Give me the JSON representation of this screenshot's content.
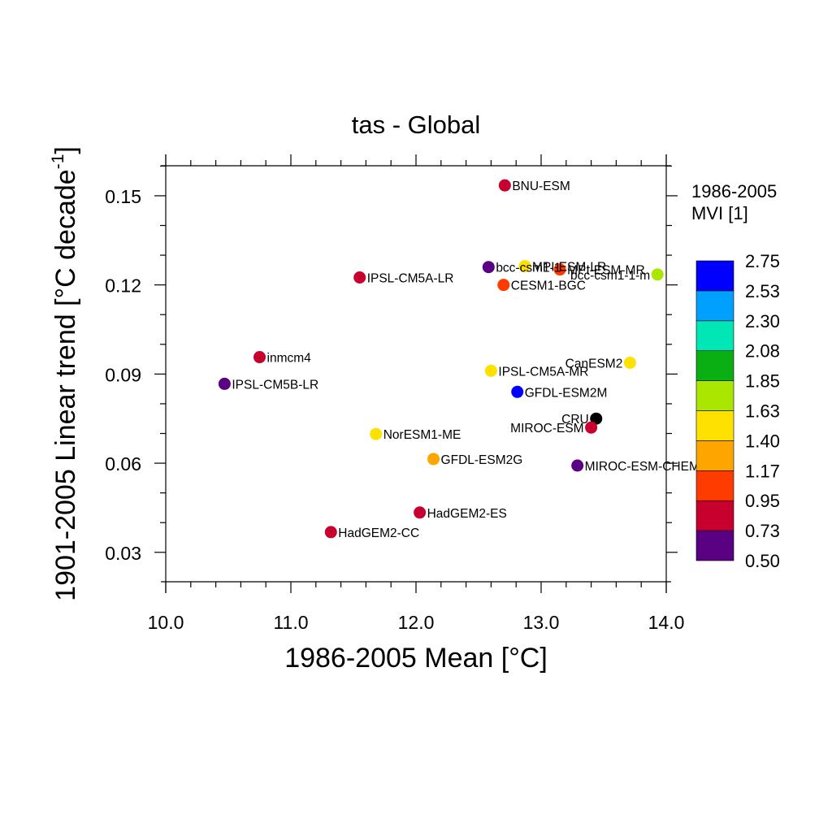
{
  "chart_data": {
    "type": "scatter",
    "title": "tas - Global",
    "xlabel": "1986-2005 Mean [°C]",
    "ylabel_main": "1901-2005 Linear trend [°C decade",
    "ylabel_sup": "-1",
    "ylabel_end": "]",
    "xlim": [
      10.0,
      14.0
    ],
    "ylim": [
      0.0201,
      0.1601
    ],
    "xticks": [
      10.0,
      11.0,
      12.0,
      13.0,
      14.0
    ],
    "xtick_labels": [
      "10.0",
      "11.0",
      "12.0",
      "13.0",
      "14.0"
    ],
    "xminor_step": 0.2,
    "yticks": [
      0.03,
      0.06,
      0.09,
      0.12,
      0.15
    ],
    "ytick_labels": [
      "0.03",
      "0.06",
      "0.09",
      "0.12",
      "0.15"
    ],
    "yminor_step": 0.01,
    "grid": false,
    "colorbar": {
      "title_line1": "1986-2005",
      "title_line2": "MVI [1]",
      "levels": [
        "0.50",
        "0.73",
        "0.95",
        "1.17",
        "1.40",
        "1.63",
        "1.85",
        "2.08",
        "2.30",
        "2.53",
        "2.75"
      ],
      "colors": [
        "#5a0082",
        "#c8002d",
        "#ff3c00",
        "#ffa500",
        "#ffe100",
        "#aae600",
        "#0aaf14",
        "#00e6b4",
        "#00a0ff",
        "#0000ff"
      ]
    },
    "points": [
      {
        "name": "BNU-ESM",
        "x": 12.71,
        "y": 0.1535,
        "color": "#c8002d",
        "label_side": "right"
      },
      {
        "name": "bcc-csm1-1",
        "x": 12.58,
        "y": 0.126,
        "color": "#5a0082",
        "label_side": "right"
      },
      {
        "name": "MPI-ESM-LR",
        "x": 12.87,
        "y": 0.1263,
        "color": "#ffe100",
        "label_side": "right"
      },
      {
        "name": "MPI-ESM-MR",
        "x": 13.15,
        "y": 0.1252,
        "color": "#ff3c00",
        "label_side": "right"
      },
      {
        "name": "bcc-csm1-1-m",
        "x": 13.93,
        "y": 0.1235,
        "color": "#aae600",
        "label_side": "left"
      },
      {
        "name": "IPSL-CM5A-LR",
        "x": 11.55,
        "y": 0.1225,
        "color": "#c8002d",
        "label_side": "right"
      },
      {
        "name": "CESM1-BGC",
        "x": 12.7,
        "y": 0.12,
        "color": "#ff3c00",
        "label_side": "right"
      },
      {
        "name": "inmcm4",
        "x": 10.75,
        "y": 0.0957,
        "color": "#c8002d",
        "label_side": "right"
      },
      {
        "name": "CanESM2",
        "x": 13.71,
        "y": 0.0938,
        "color": "#ffe100",
        "label_side": "left"
      },
      {
        "name": "IPSL-CM5A-MR",
        "x": 12.6,
        "y": 0.0911,
        "color": "#ffe100",
        "label_side": "right"
      },
      {
        "name": "IPSL-CM5B-LR",
        "x": 10.47,
        "y": 0.0867,
        "color": "#5a0082",
        "label_side": "right"
      },
      {
        "name": "GFDL-ESM2M",
        "x": 12.81,
        "y": 0.084,
        "color": "#0000ff",
        "label_side": "right"
      },
      {
        "name": "CRU",
        "x": 13.44,
        "y": 0.075,
        "color": "#000000",
        "label_side": "left"
      },
      {
        "name": "MIROC-ESM",
        "x": 13.4,
        "y": 0.072,
        "color": "#c8002d",
        "label_side": "left"
      },
      {
        "name": "NorESM1-ME",
        "x": 11.68,
        "y": 0.0698,
        "color": "#ffe100",
        "label_side": "right"
      },
      {
        "name": "GFDL-ESM2G",
        "x": 12.14,
        "y": 0.0614,
        "color": "#ffa500",
        "label_side": "right"
      },
      {
        "name": "MIROC-ESM-CHEM",
        "x": 13.29,
        "y": 0.0592,
        "color": "#5a0082",
        "label_side": "right"
      },
      {
        "name": "HadGEM2-ES",
        "x": 12.03,
        "y": 0.0434,
        "color": "#c8002d",
        "label_side": "right"
      },
      {
        "name": "HadGEM2-CC",
        "x": 11.32,
        "y": 0.0368,
        "color": "#c8002d",
        "label_side": "right"
      }
    ]
  }
}
